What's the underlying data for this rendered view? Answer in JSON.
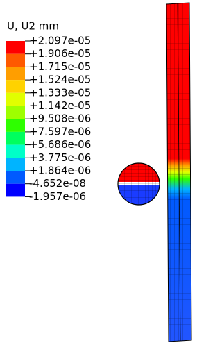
{
  "legend": {
    "title": "U, U2  mm",
    "labels": [
      "+2.097e-05",
      "+1.906e-05",
      "+1.715e-05",
      "+1.524e-05",
      "+1.333e-05",
      "+1.142e-05",
      "+9.508e-06",
      "+7.597e-06",
      "+5.686e-06",
      "+3.775e-06",
      "+1.864e-06",
      "-4.652e-08",
      "-1.957e-06"
    ],
    "colors": [
      "#ff0000",
      "#ff5a00",
      "#ff9e00",
      "#ffd200",
      "#e1ff00",
      "#9eff00",
      "#2eff00",
      "#00ff5e",
      "#00ffc8",
      "#00b4ff",
      "#005aff",
      "#0000ff"
    ]
  }
}
